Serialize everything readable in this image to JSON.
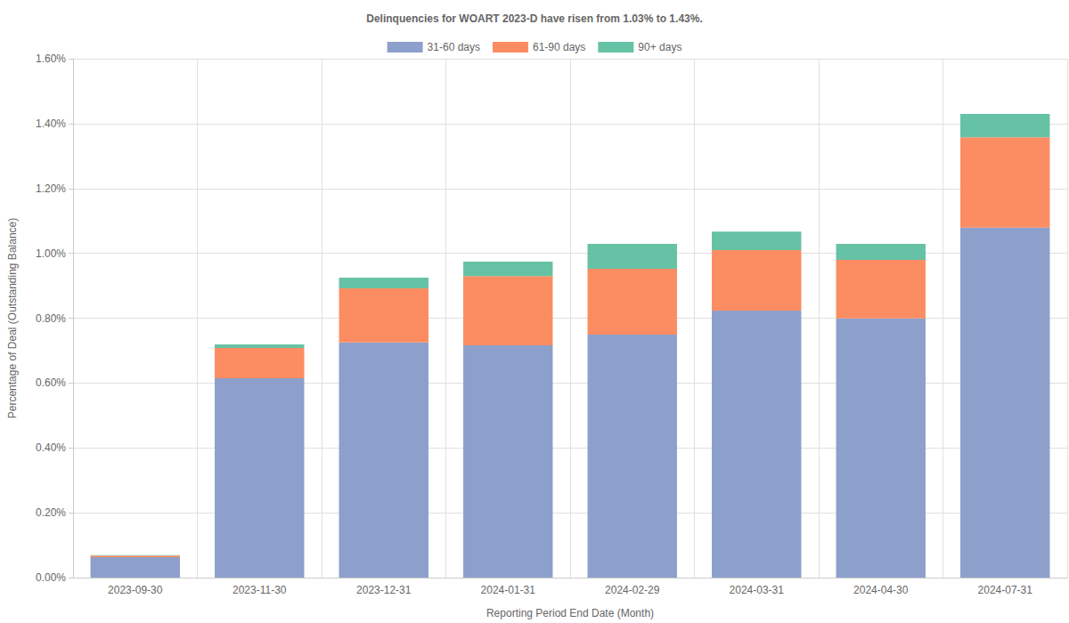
{
  "chart_data": {
    "type": "bar",
    "title": "Delinquencies for WOART 2023-D have risen from 1.03% to 1.43%.",
    "x_label": "Reporting Period End Date (Month)",
    "y_label": "Percentage of Deal (Outstanding Balance)",
    "categories": [
      "2023-09-30",
      "2023-11-30",
      "2023-12-31",
      "2024-01-31",
      "2024-02-29",
      "2024-03-31",
      "2024-04-30",
      "2024-07-31"
    ],
    "series": [
      {
        "name": "31-60 days",
        "color": "#8da0cb",
        "values": [
          0.063,
          0.615,
          0.725,
          0.716,
          0.749,
          0.823,
          0.799,
          1.079
        ]
      },
      {
        "name": "61-90 days",
        "color": "#fc8d62",
        "values": [
          0.005,
          0.093,
          0.167,
          0.214,
          0.203,
          0.187,
          0.181,
          0.279
        ]
      },
      {
        "name": "90+ days",
        "color": "#66c2a5",
        "values": [
          0.001,
          0.011,
          0.033,
          0.044,
          0.077,
          0.057,
          0.049,
          0.072
        ]
      }
    ],
    "ylim": [
      0,
      1.6
    ],
    "yticks": [
      {
        "value": 0,
        "label": "0.00%"
      },
      {
        "value": 0.2,
        "label": "0.20%"
      },
      {
        "value": 0.4,
        "label": "0.40%"
      },
      {
        "value": 0.6,
        "label": "0.60%"
      },
      {
        "value": 0.8,
        "label": "0.80%"
      },
      {
        "value": 1.0,
        "label": "1.00%"
      },
      {
        "value": 1.2,
        "label": "1.20%"
      },
      {
        "value": 1.4,
        "label": "1.40%"
      },
      {
        "value": 1.6,
        "label": "1.60%"
      }
    ],
    "stacked": true,
    "grid": true,
    "legend": "top"
  }
}
